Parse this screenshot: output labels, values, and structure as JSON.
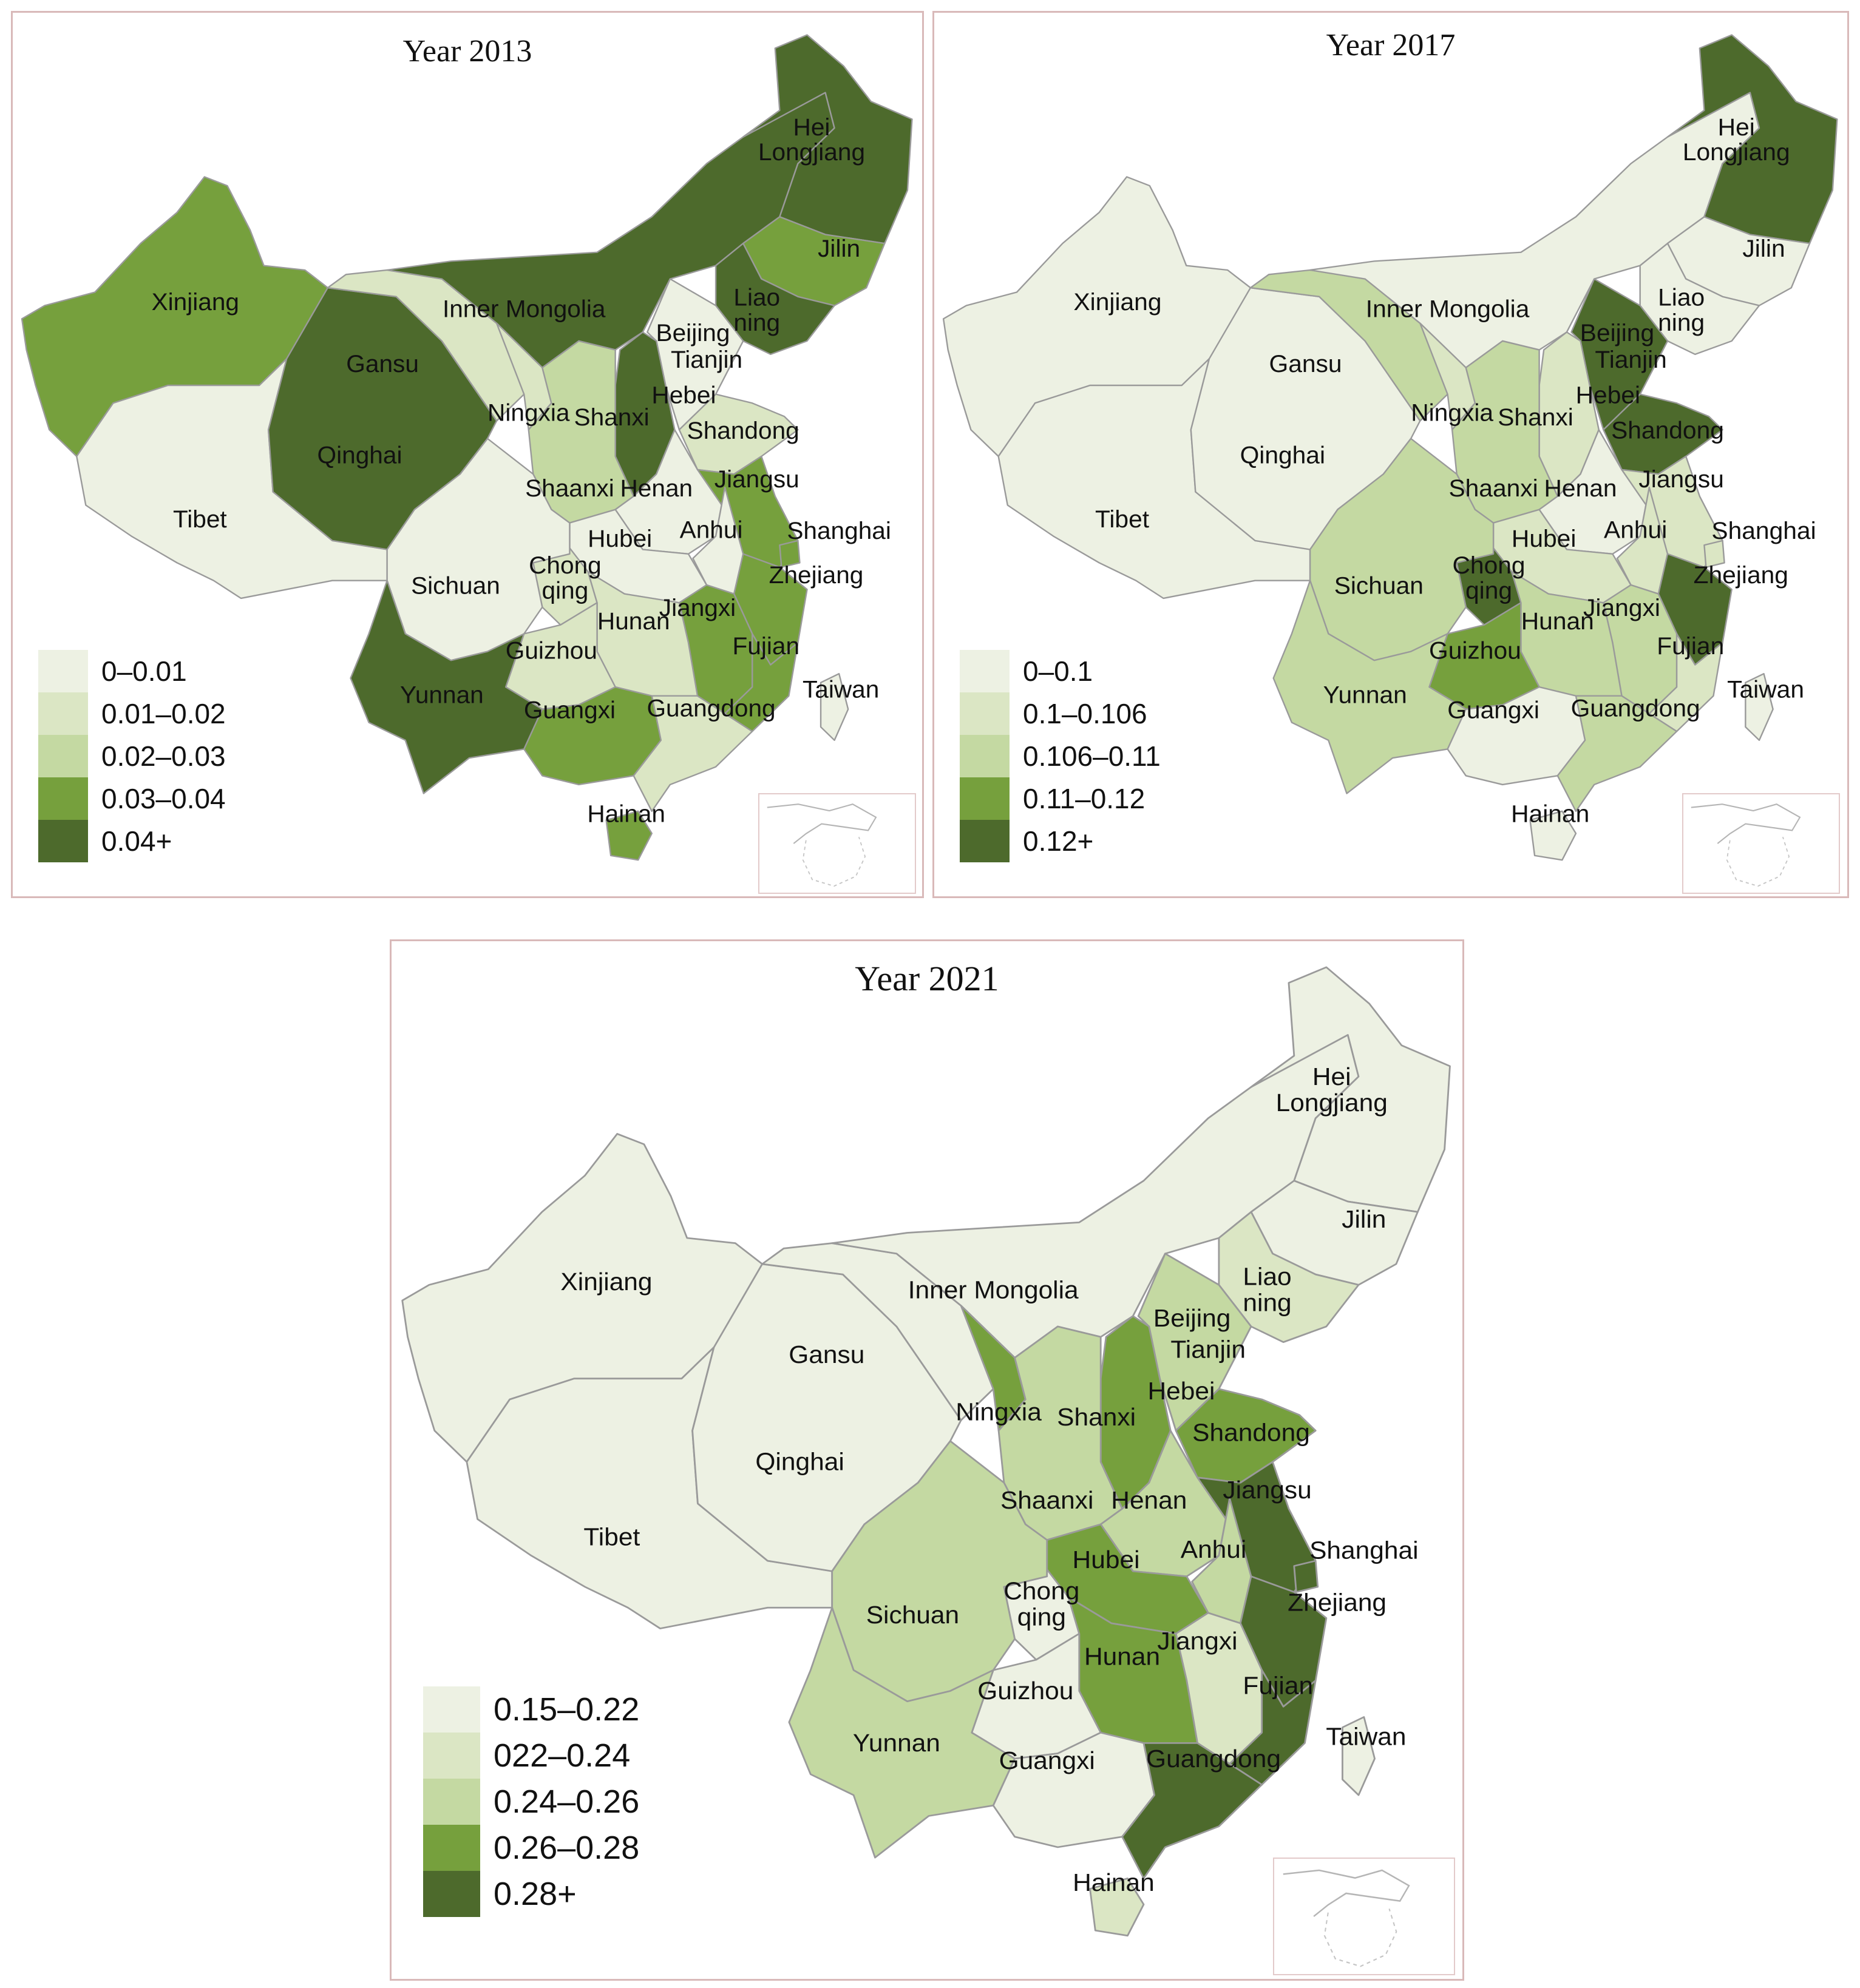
{
  "colors": {
    "c1": "#edf1e3",
    "c2": "#dbe6c4",
    "c3": "#c4d9a2",
    "c4": "#76a03d",
    "c5": "#4d6a2c",
    "border": "#9a9a9a"
  },
  "panels": [
    {
      "id": "p2013",
      "title": "Year 2013",
      "legend": [
        "0–0.01",
        "0.01–0.02",
        "0.02–0.03",
        "0.03–0.04",
        "0.04+"
      ],
      "classes": {
        "xinjiang": 4,
        "tibet": 1,
        "qinghai": 5,
        "gansu": 2,
        "innermongolia": 5,
        "heilongjiang": 5,
        "jilin": 4,
        "liaoning": 5,
        "beijing": 3,
        "tianjin": 3,
        "hebei": 1,
        "shanxi": 5,
        "ningxia": 2,
        "shaanxi": 3,
        "henan": 1,
        "shandong": 2,
        "jiangsu": 4,
        "anhui": 1,
        "shanghai": 4,
        "hubei": 1,
        "sichuan": 1,
        "chongqing": 2,
        "hunan": 2,
        "jiangxi": 4,
        "zhejiang": 4,
        "guizhou": 2,
        "yunnan": 5,
        "guangxi": 4,
        "guangdong": 2,
        "fujian": 4,
        "taiwan": 1,
        "hainan": 4
      }
    },
    {
      "id": "p2017",
      "title": "Year 2017",
      "legend": [
        "0–0.1",
        "0.1–0.106",
        "0.106–0.11",
        "0.11–0.12",
        "0.12+"
      ],
      "classes": {
        "xinjiang": 1,
        "tibet": 1,
        "qinghai": 1,
        "gansu": 3,
        "innermongolia": 1,
        "heilongjiang": 5,
        "jilin": 1,
        "liaoning": 1,
        "beijing": 5,
        "tianjin": 5,
        "hebei": 5,
        "shanxi": 2,
        "ningxia": 2,
        "shaanxi": 3,
        "henan": 1,
        "shandong": 5,
        "jiangsu": 2,
        "anhui": 2,
        "shanghai": 2,
        "hubei": 2,
        "sichuan": 3,
        "chongqing": 5,
        "hunan": 3,
        "jiangxi": 3,
        "zhejiang": 5,
        "guizhou": 4,
        "yunnan": 3,
        "guangxi": 1,
        "guangdong": 3,
        "fujian": 2,
        "taiwan": 1,
        "hainan": 1
      }
    },
    {
      "id": "p2021",
      "title": "Year 2021",
      "legend": [
        "0.15–0.22",
        "022–0.24",
        "0.24–0.26",
        "0.26–0.28",
        "0.28+"
      ],
      "classes": {
        "xinjiang": 1,
        "tibet": 1,
        "qinghai": 1,
        "gansu": 1,
        "innermongolia": 1,
        "heilongjiang": 1,
        "jilin": 1,
        "liaoning": 2,
        "beijing": 5,
        "tianjin": 3,
        "hebei": 3,
        "shanxi": 4,
        "ningxia": 4,
        "shaanxi": 3,
        "henan": 3,
        "shandong": 4,
        "jiangsu": 5,
        "anhui": 3,
        "shanghai": 5,
        "hubei": 4,
        "sichuan": 3,
        "chongqing": 1,
        "hunan": 4,
        "jiangxi": 2,
        "zhejiang": 5,
        "guizhou": 1,
        "yunnan": 3,
        "guangxi": 1,
        "guangdong": 5,
        "fujian": 5,
        "taiwan": 1,
        "hainan": 2
      }
    }
  ],
  "labels": {
    "xinjiang": [
      "Xinjiang"
    ],
    "tibet": [
      "Tibet"
    ],
    "qinghai": [
      "Qinghai"
    ],
    "gansu": [
      "Gansu"
    ],
    "innermongolia": [
      "Inner Mongolia"
    ],
    "heilongjiang": [
      "Hei",
      "Longjiang"
    ],
    "jilin": [
      "Jilin"
    ],
    "liaoning": [
      "Liao",
      "ning"
    ],
    "beijing": [
      "Beijing"
    ],
    "tianjin": [
      "Tianjin"
    ],
    "hebei": [
      "Hebei"
    ],
    "shanxi": [
      "Shanxi"
    ],
    "ningxia": [
      "Ningxia"
    ],
    "shaanxi": [
      "Shaanxi"
    ],
    "henan": [
      "Henan"
    ],
    "shandong": [
      "Shandong"
    ],
    "jiangsu": [
      "Jiangsu"
    ],
    "anhui": [
      "Anhui"
    ],
    "shanghai": [
      "Shanghai"
    ],
    "hubei": [
      "Hubei"
    ],
    "sichuan": [
      "Sichuan"
    ],
    "chongqing": [
      "Chong",
      "qing"
    ],
    "hunan": [
      "Hunan"
    ],
    "jiangxi": [
      "Jiangxi"
    ],
    "zhejiang": [
      "Zhejiang"
    ],
    "guizhou": [
      "Guizhou"
    ],
    "yunnan": [
      "Yunnan"
    ],
    "guangxi": [
      "Guangxi"
    ],
    "guangdong": [
      "Guangdong"
    ],
    "fujian": [
      "Fujian"
    ],
    "taiwan": [
      "Taiwan"
    ],
    "hainan": [
      "Hainan"
    ]
  }
}
